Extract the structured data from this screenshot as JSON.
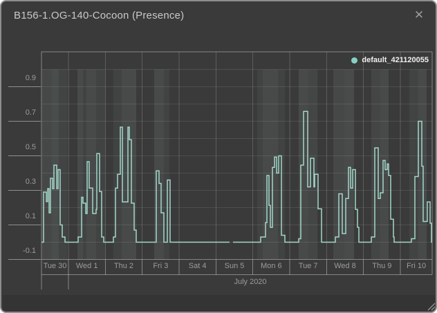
{
  "window": {
    "title": "B156-1.OG-140-Cocoon (Presence)",
    "close_glyph": "✕"
  },
  "legend": {
    "series_label": "default_421120055",
    "dot_color": "#86d1c3"
  },
  "colors": {
    "window_bg": "#3a3a3a",
    "window_border": "#8e8e8e",
    "line": "#a4d8ca",
    "band_tint_rgb": "172,196,186",
    "grid_h": "rgba(255,255,255,0.10)",
    "grid_v": "rgba(255,255,255,0.18)",
    "axis_line": "rgba(255,255,255,0.38)",
    "gutter_tick": "#8f8f8f",
    "axis_label": "#9c9c9c",
    "footer_shade": "rgba(0,0,0,0.10)",
    "resize_grip": "#8f8f8f"
  },
  "chart_data": {
    "type": "line",
    "subtype": "step",
    "title": "B156-1.OG-140-Cocoon (Presence)",
    "legend_position": "top-right",
    "grid": true,
    "y_axis": {
      "range": [
        -0.1,
        1.1
      ],
      "gridline_step": 0.1,
      "labeled_ticks": [
        {
          "label": "0.9",
          "value": 0.9
        },
        {
          "label": "0.7",
          "value": 0.7
        },
        {
          "label": "0.5",
          "value": 0.5
        },
        {
          "label": "0.3",
          "value": 0.3
        },
        {
          "label": "0.1",
          "value": 0.1
        },
        {
          "label": "-0.1",
          "value": -0.1
        }
      ]
    },
    "x_axis": {
      "day_labels": [
        "Tue 30",
        "Wed 1",
        "Thu 2",
        "Fri 3",
        "Sat 4",
        "Sun 5",
        "Mon 6",
        "Tue 7",
        "Wed 8",
        "Thu 9",
        "Fri 10"
      ],
      "month_label": "July 2020",
      "note_px_mapping": "x values in series/bands are screenshot pixel coords; plot spans px 58..623, midnight Jul 1 at px 97, one day = 53.33 px"
    },
    "series": [
      {
        "name": "default_421120055",
        "color": "#a4d8ca",
        "segments": [
          [
            [
              58,
              0
            ],
            [
              61,
              0.29
            ],
            [
              65,
              0.235
            ],
            [
              67,
              0.31
            ],
            [
              69,
              0.17
            ],
            [
              71,
              0.37
            ],
            [
              74,
              0.31
            ],
            [
              76,
              0.446
            ],
            [
              80,
              0.31
            ],
            [
              82,
              0.42
            ],
            [
              85,
              0.1
            ],
            [
              88,
              0.03
            ],
            [
              92,
              0
            ],
            [
              111,
              0.03
            ],
            [
              116,
              0.26
            ],
            [
              118,
              0.226
            ],
            [
              122,
              0.166
            ],
            [
              124,
              0.466
            ],
            [
              127,
              0.313
            ],
            [
              132,
              0.166
            ],
            [
              137,
              0.19
            ],
            [
              138,
              0.513
            ],
            [
              142,
              0.293
            ],
            [
              145,
              0.03
            ],
            [
              148,
              0
            ],
            [
              162,
              0.03
            ],
            [
              165,
              0.313
            ],
            [
              168,
              0.393
            ],
            [
              172,
              0.666
            ],
            [
              175,
              0.233
            ],
            [
              183,
              0.666
            ],
            [
              185,
              0.593
            ],
            [
              188,
              0.226
            ],
            [
              192,
              0.07
            ],
            [
              195,
              0
            ],
            [
              224,
              0.413
            ],
            [
              228,
              0.34
            ],
            [
              231,
              0.17
            ],
            [
              235,
              0
            ],
            [
              240,
              0.36
            ],
            [
              244,
              0
            ],
            [
              330,
              0
            ]
          ],
          [
            [
              335,
              0
            ],
            [
              375,
              0.03
            ],
            [
              382,
              0.113
            ],
            [
              384,
              0.386
            ],
            [
              387,
              0.213
            ],
            [
              389,
              0.086
            ],
            [
              392,
              0.433
            ],
            [
              395,
              0.493
            ],
            [
              398,
              0.4
            ],
            [
              401,
              0.5
            ],
            [
              405,
              0.04
            ],
            [
              410,
              0
            ],
            [
              430,
              0.02
            ],
            [
              433,
              0.446
            ],
            [
              437,
              0.757
            ],
            [
              443,
              0.32
            ],
            [
              447,
              0.486
            ],
            [
              452,
              0.32
            ],
            [
              453,
              0.393
            ],
            [
              458,
              0.193
            ],
            [
              463,
              0
            ],
            [
              483,
              0.03
            ],
            [
              488,
              0.28
            ],
            [
              493,
              0.05
            ],
            [
              498,
              0.253
            ],
            [
              502,
              0.433
            ],
            [
              505,
              0.313
            ],
            [
              508,
              0.42
            ],
            [
              512,
              0.19
            ],
            [
              515,
              0.086
            ],
            [
              517,
              0
            ],
            [
              535,
              0.03
            ],
            [
              540,
              0.546
            ],
            [
              545,
              0.253
            ],
            [
              548,
              0.286
            ],
            [
              552,
              0.473
            ],
            [
              555,
              0.42
            ],
            [
              558,
              0.453
            ],
            [
              560,
              0.386
            ],
            [
              563,
              0.133
            ],
            [
              567,
              0.03
            ],
            [
              568,
              0
            ],
            [
              593,
              0.02
            ],
            [
              598,
              0.38
            ],
            [
              603,
              0.7
            ],
            [
              608,
              0.44
            ],
            [
              610,
              0.12
            ],
            [
              616,
              0.233
            ],
            [
              620,
              0.11
            ],
            [
              622,
              0
            ],
            [
              623,
              0
            ]
          ]
        ]
      }
    ],
    "bands": [
      [
        59,
        73,
        0.1
      ],
      [
        73,
        83,
        0.14
      ],
      [
        83,
        95,
        0.08
      ],
      [
        110,
        118,
        0.12
      ],
      [
        118,
        123,
        0.07
      ],
      [
        123,
        137,
        0.12
      ],
      [
        137,
        150,
        0.07
      ],
      [
        162,
        174,
        0.07
      ],
      [
        174,
        195,
        0.12
      ],
      [
        221,
        235,
        0.12
      ],
      [
        235,
        243,
        0.07
      ],
      [
        370,
        378,
        0.07
      ],
      [
        378,
        400,
        0.12
      ],
      [
        400,
        410,
        0.07
      ],
      [
        430,
        444,
        0.12
      ],
      [
        444,
        457,
        0.09
      ],
      [
        480,
        496,
        0.1
      ],
      [
        496,
        510,
        0.13
      ],
      [
        535,
        548,
        0.09
      ],
      [
        548,
        560,
        0.12
      ],
      [
        590,
        603,
        0.08
      ],
      [
        603,
        615,
        0.12
      ]
    ]
  }
}
